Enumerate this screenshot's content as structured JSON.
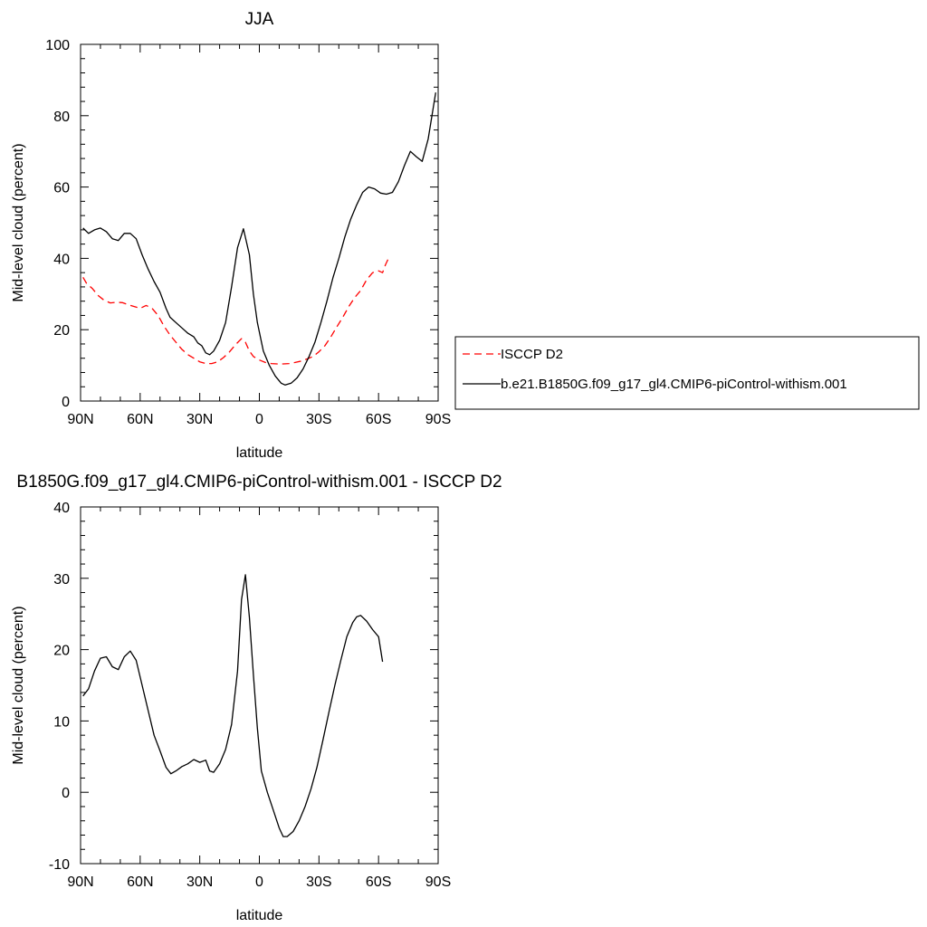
{
  "chart_data": [
    {
      "type": "line",
      "title": "JJA",
      "xlabel": "latitude",
      "ylabel": "Mid-level cloud (percent)",
      "x_ticks": [
        {
          "value": -90,
          "label": "90N"
        },
        {
          "value": -60,
          "label": "60N"
        },
        {
          "value": -30,
          "label": "30N"
        },
        {
          "value": 0,
          "label": "0"
        },
        {
          "value": 30,
          "label": "30S"
        },
        {
          "value": 60,
          "label": "60S"
        },
        {
          "value": 90,
          "label": "90S"
        }
      ],
      "xlim": [
        -90,
        90
      ],
      "y_ticks": [
        0,
        20,
        40,
        60,
        80,
        100
      ],
      "ylim": [
        0,
        100
      ],
      "legend": {
        "position": "right"
      },
      "series": [
        {
          "name": "ISCCP D2",
          "color": "#ff0000",
          "dash": "dashed",
          "points": [
            [
              -88.75,
              34.7
            ],
            [
              -87,
              33
            ],
            [
              -84,
              31.5
            ],
            [
              -81,
              29.5
            ],
            [
              -78,
              28.2
            ],
            [
              -75,
              27.5
            ],
            [
              -72,
              27.7
            ],
            [
              -69,
              27.6
            ],
            [
              -66,
              27
            ],
            [
              -63,
              26.5
            ],
            [
              -60,
              26
            ],
            [
              -57,
              26.8
            ],
            [
              -54,
              26
            ],
            [
              -51,
              24
            ],
            [
              -48,
              21
            ],
            [
              -45,
              18.5
            ],
            [
              -42,
              16.5
            ],
            [
              -39,
              14.5
            ],
            [
              -36,
              13
            ],
            [
              -33,
              12
            ],
            [
              -30,
              11
            ],
            [
              -27,
              10.5
            ],
            [
              -24,
              10.5
            ],
            [
              -21,
              11
            ],
            [
              -18,
              12.2
            ],
            [
              -15,
              13.8
            ],
            [
              -12,
              15.8
            ],
            [
              -9,
              17.5
            ],
            [
              -7,
              16.5
            ],
            [
              -5,
              14
            ],
            [
              -3,
              12.5
            ],
            [
              0,
              11.5
            ],
            [
              3,
              10.8
            ],
            [
              6,
              10.5
            ],
            [
              9,
              10.4
            ],
            [
              12,
              10.4
            ],
            [
              15,
              10.5
            ],
            [
              18,
              10.8
            ],
            [
              21,
              11.2
            ],
            [
              24,
              11.8
            ],
            [
              27,
              12.5
            ],
            [
              30,
              13.8
            ],
            [
              33,
              15.5
            ],
            [
              36,
              18
            ],
            [
              39,
              20.8
            ],
            [
              42,
              23.5
            ],
            [
              45,
              26.5
            ],
            [
              48,
              29
            ],
            [
              51,
              31
            ],
            [
              54,
              34
            ],
            [
              57,
              36
            ],
            [
              60,
              36.5
            ],
            [
              62,
              36
            ],
            [
              63.5,
              38.2
            ],
            [
              65,
              40
            ]
          ]
        },
        {
          "name": "b.e21.B1850G.f09_g17_gl4.CMIP6-piControl-withism.001",
          "color": "#000000",
          "dash": "solid",
          "points": [
            [
              -88.75,
              48.5
            ],
            [
              -86,
              47
            ],
            [
              -83,
              48
            ],
            [
              -80,
              48.5
            ],
            [
              -77,
              47.5
            ],
            [
              -74,
              45.5
            ],
            [
              -71,
              45
            ],
            [
              -68,
              47
            ],
            [
              -65,
              47
            ],
            [
              -62,
              45.5
            ],
            [
              -59,
              41
            ],
            [
              -56,
              37
            ],
            [
              -53,
              33.5
            ],
            [
              -50,
              30.5
            ],
            [
              -47,
              26
            ],
            [
              -45,
              23.5
            ],
            [
              -42,
              22
            ],
            [
              -39,
              20.5
            ],
            [
              -36,
              19
            ],
            [
              -33,
              18
            ],
            [
              -31,
              16.3
            ],
            [
              -29,
              15.5
            ],
            [
              -27,
              13.5
            ],
            [
              -25,
              13
            ],
            [
              -23,
              14
            ],
            [
              -20,
              17
            ],
            [
              -17,
              22
            ],
            [
              -14,
              32
            ],
            [
              -11,
              43
            ],
            [
              -8,
              48.3
            ],
            [
              -5,
              41
            ],
            [
              -3,
              30
            ],
            [
              -1,
              22
            ],
            [
              2,
              14
            ],
            [
              5,
              10
            ],
            [
              8,
              7
            ],
            [
              11,
              5
            ],
            [
              13,
              4.5
            ],
            [
              16,
              5
            ],
            [
              19,
              6.5
            ],
            [
              22,
              9
            ],
            [
              25,
              12.5
            ],
            [
              28,
              16.5
            ],
            [
              31,
              22
            ],
            [
              34,
              28
            ],
            [
              37,
              34.5
            ],
            [
              40,
              40
            ],
            [
              43,
              46
            ],
            [
              46,
              51
            ],
            [
              49,
              55
            ],
            [
              52,
              58.5
            ],
            [
              55,
              60
            ],
            [
              58,
              59.5
            ],
            [
              61,
              58.3
            ],
            [
              64,
              58
            ],
            [
              67,
              58.5
            ],
            [
              70,
              61.5
            ],
            [
              73,
              66
            ],
            [
              76,
              70
            ],
            [
              79,
              68.5
            ],
            [
              82,
              67.2
            ],
            [
              85,
              73.5
            ],
            [
              88.75,
              86.5
            ]
          ]
        }
      ]
    },
    {
      "type": "line",
      "title": "B1850G.f09_g17_gl4.CMIP6-piControl-withism.001 - ISCCP D2",
      "xlabel": "latitude",
      "ylabel": "Mid-level cloud (percent)",
      "x_ticks": [
        {
          "value": -90,
          "label": "90N"
        },
        {
          "value": -60,
          "label": "60N"
        },
        {
          "value": -30,
          "label": "30N"
        },
        {
          "value": 0,
          "label": "0"
        },
        {
          "value": 30,
          "label": "30S"
        },
        {
          "value": 60,
          "label": "60S"
        },
        {
          "value": 90,
          "label": "90S"
        }
      ],
      "xlim": [
        -90,
        90
      ],
      "y_ticks": [
        -10,
        0,
        10,
        20,
        30,
        40
      ],
      "ylim": [
        -10,
        40
      ],
      "series": [
        {
          "color": "#000000",
          "dash": "solid",
          "points": [
            [
              -88.75,
              13.5
            ],
            [
              -86,
              14.5
            ],
            [
              -83,
              17
            ],
            [
              -80,
              18.8
            ],
            [
              -77,
              19
            ],
            [
              -74,
              17.6
            ],
            [
              -71,
              17.2
            ],
            [
              -68,
              19
            ],
            [
              -65,
              19.8
            ],
            [
              -62,
              18.5
            ],
            [
              -59,
              15
            ],
            [
              -56,
              11.5
            ],
            [
              -53,
              8
            ],
            [
              -50,
              5.8
            ],
            [
              -47,
              3.5
            ],
            [
              -44.5,
              2.6
            ],
            [
              -42,
              3
            ],
            [
              -39,
              3.6
            ],
            [
              -36,
              4
            ],
            [
              -33,
              4.6
            ],
            [
              -30,
              4.2
            ],
            [
              -27,
              4.5
            ],
            [
              -25,
              3
            ],
            [
              -23,
              2.8
            ],
            [
              -20,
              4
            ],
            [
              -17,
              6
            ],
            [
              -14,
              9.5
            ],
            [
              -11,
              17
            ],
            [
              -10,
              22
            ],
            [
              -9,
              27
            ],
            [
              -7,
              30.5
            ],
            [
              -5,
              24.5
            ],
            [
              -3,
              16.5
            ],
            [
              -1,
              9
            ],
            [
              1,
              3
            ],
            [
              4,
              0
            ],
            [
              7,
              -2.5
            ],
            [
              10,
              -5
            ],
            [
              12,
              -6.2
            ],
            [
              14,
              -6.2
            ],
            [
              17,
              -5.5
            ],
            [
              20,
              -4
            ],
            [
              23,
              -2
            ],
            [
              26,
              0.5
            ],
            [
              29,
              3.5
            ],
            [
              32,
              7.3
            ],
            [
              35,
              11.2
            ],
            [
              38,
              15
            ],
            [
              41,
              18.5
            ],
            [
              44,
              21.8
            ],
            [
              47,
              23.8
            ],
            [
              49,
              24.6
            ],
            [
              51,
              24.8
            ],
            [
              54,
              24
            ],
            [
              57,
              22.8
            ],
            [
              60,
              21.8
            ],
            [
              62,
              18.3
            ]
          ]
        }
      ]
    }
  ]
}
